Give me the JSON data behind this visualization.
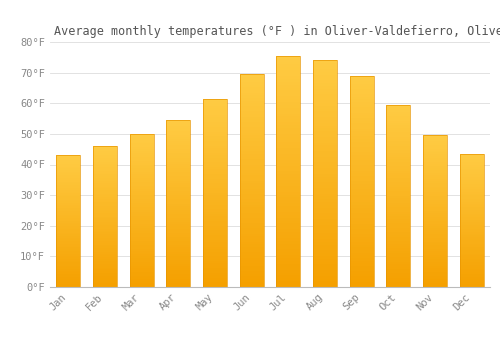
{
  "title": "Average monthly temperatures (°F ) in Oliver-Valdefierro, Oliver, Valdefierro",
  "months": [
    "Jan",
    "Feb",
    "Mar",
    "Apr",
    "May",
    "Jun",
    "Jul",
    "Aug",
    "Sep",
    "Oct",
    "Nov",
    "Dec"
  ],
  "values": [
    43,
    46,
    50,
    54.5,
    61.5,
    69.5,
    75.5,
    74,
    69,
    59.5,
    49.5,
    43.5
  ],
  "bar_color_top": "#FFCC44",
  "bar_color_bottom": "#F5A000",
  "bar_edge_color": "#E89500",
  "background_color": "#FFFFFF",
  "grid_color": "#DDDDDD",
  "ylim": [
    0,
    80
  ],
  "yticks": [
    0,
    10,
    20,
    30,
    40,
    50,
    60,
    70,
    80
  ],
  "ytick_labels": [
    "0°F",
    "10°F",
    "20°F",
    "30°F",
    "40°F",
    "50°F",
    "60°F",
    "70°F",
    "80°F"
  ],
  "title_fontsize": 8.5,
  "tick_fontsize": 7.5,
  "tick_color": "#888888",
  "title_color": "#555555"
}
